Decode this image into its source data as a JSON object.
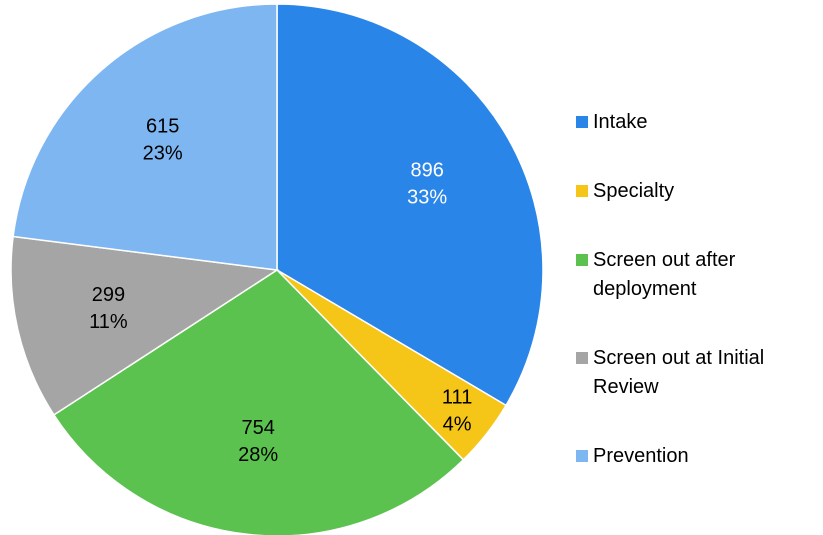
{
  "chart_data": {
    "type": "pie",
    "categories": [
      "Intake",
      "Specialty",
      "Screen out after deployment",
      "Screen out at Initial Review",
      "Prevention"
    ],
    "values": [
      896,
      111,
      754,
      299,
      615
    ],
    "percent_labels": [
      "33%",
      "4%",
      "28%",
      "11%",
      "23%"
    ],
    "colors": [
      "#2a85e8",
      "#f5c518",
      "#5bc24f",
      "#a5a5a5",
      "#7eb6f2"
    ],
    "label_colors": [
      "#ffffff",
      "#000000",
      "#000000",
      "#000000",
      "#000000"
    ],
    "legend": "right"
  }
}
